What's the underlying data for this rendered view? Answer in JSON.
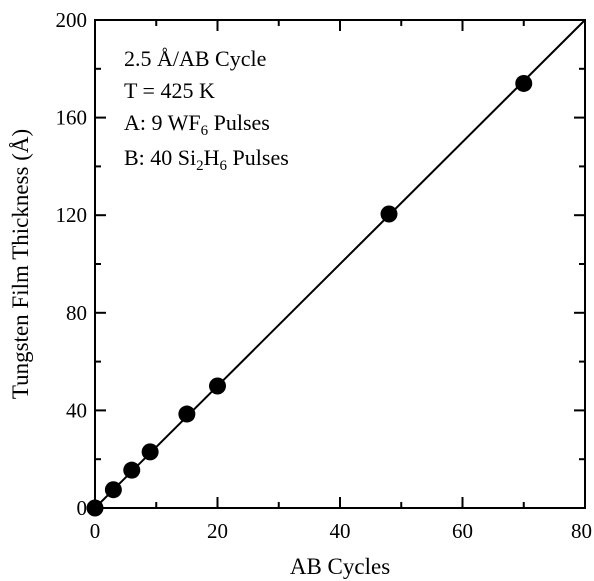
{
  "chart_data": {
    "type": "scatter",
    "xlabel": "AB Cycles",
    "ylabel": "Tungsten Film Thickness (Å)",
    "xlim": [
      0,
      80
    ],
    "ylim": [
      0,
      200
    ],
    "x_ticks": [
      "0",
      "20",
      "40",
      "60",
      "80"
    ],
    "y_ticks": [
      "0",
      "40",
      "80",
      "120",
      "160",
      "200"
    ],
    "x_tick_values": [
      0,
      20,
      40,
      60,
      80
    ],
    "y_tick_values": [
      0,
      40,
      80,
      120,
      160,
      200
    ],
    "grid": false,
    "series": [
      {
        "x": [
          0,
          3,
          6,
          9,
          15,
          20,
          48,
          70
        ],
        "y": [
          0,
          7.5,
          15.5,
          23,
          38.5,
          50,
          120.5,
          174
        ],
        "marker": "filled-circle",
        "color": "#000000"
      }
    ],
    "fit_line": {
      "x": [
        0,
        80
      ],
      "y": [
        0,
        200
      ],
      "color": "#000000"
    },
    "annotations": [
      {
        "text": "2.5 Å/AB Cycle"
      },
      {
        "text": "T = 425 K"
      },
      {
        "prefix": "A: 9 WF",
        "sub": "6",
        "suffix": " Pulses"
      },
      {
        "prefix": "B: 40 Si",
        "sub": "2",
        "mid": "H",
        "sub2": "6",
        "suffix": " Pulses"
      }
    ]
  }
}
